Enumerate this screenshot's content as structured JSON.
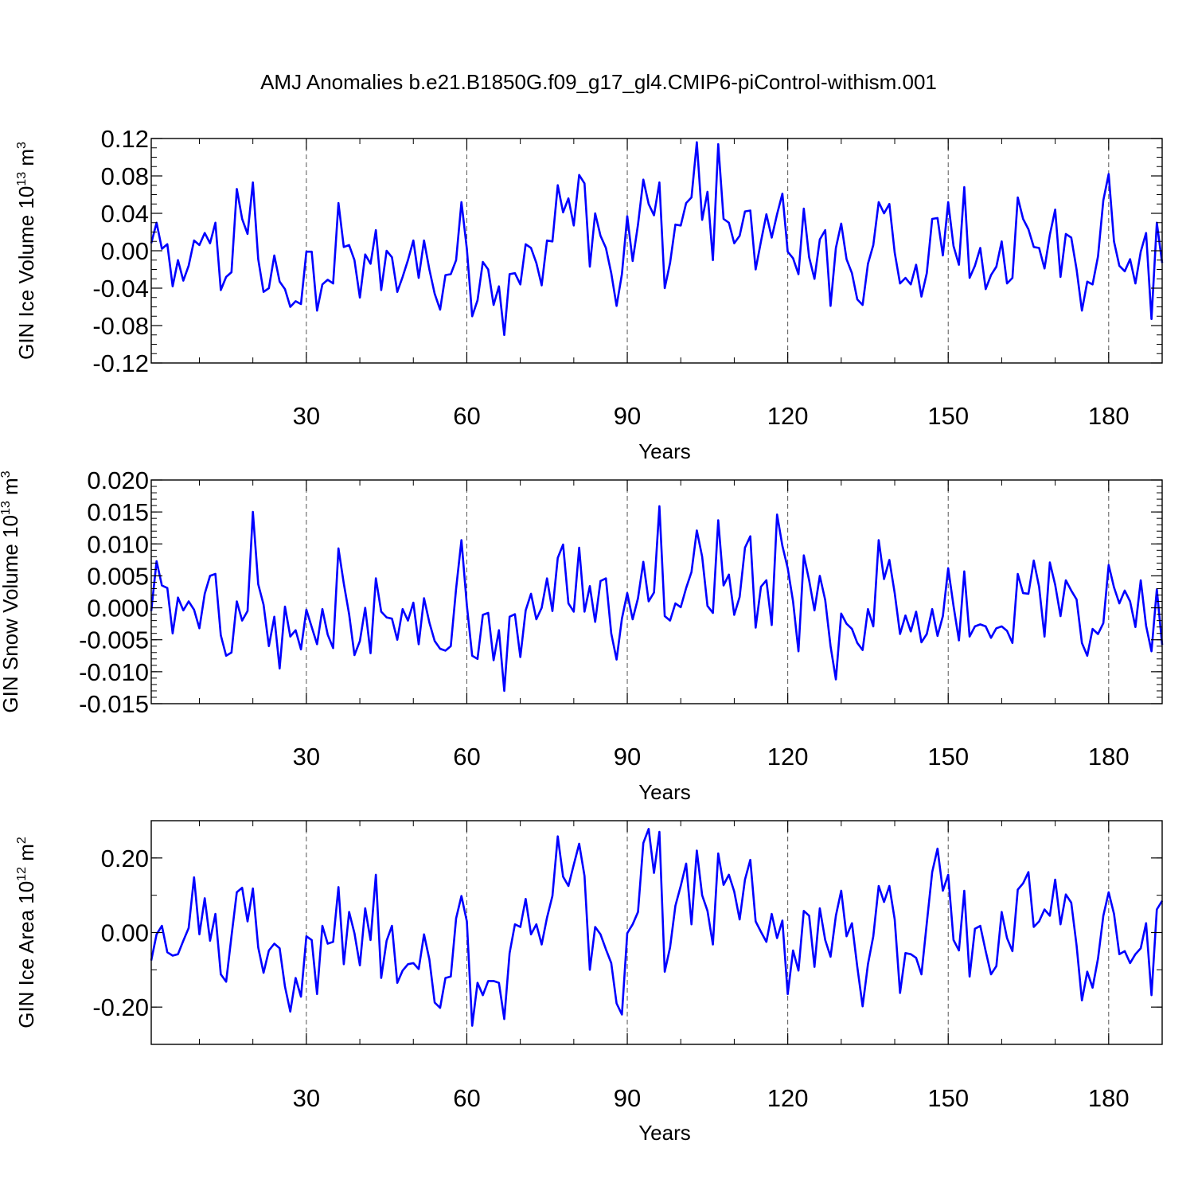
{
  "title": "AMJ Anomalies b.e21.B1850G.f09_g17_gl4.CMIP6-piControl-withism.001",
  "line_color": "#0000ff",
  "chart_data": [
    {
      "type": "line",
      "ylabel_main": "GIN Ice Volume 10",
      "ylabel_exp": "13",
      "ylabel_unit": " m",
      "ylabel_unit_exp": "3",
      "xlabel": "Years",
      "xlim": [
        1,
        190
      ],
      "ylim": [
        -0.12,
        0.12
      ],
      "x_ticks": [
        30,
        60,
        90,
        120,
        150,
        180
      ],
      "x_tick_labels": [
        "30",
        "60",
        "90",
        "120",
        "150",
        "180"
      ],
      "y_ticks": [
        -0.12,
        -0.08,
        -0.04,
        0.0,
        0.04,
        0.08,
        0.12
      ],
      "y_tick_labels": [
        "-0.12",
        "-0.08",
        "-0.04",
        "0.00",
        "0.04",
        "0.08",
        "0.12"
      ],
      "y_minor_step": 0.01,
      "grid": "vertical dashed",
      "series": [
        {
          "values": [
            0.008,
            0.03,
            0.002,
            0.007,
            -0.038,
            -0.01,
            -0.032,
            -0.016,
            0.011,
            0.006,
            0.019,
            0.008,
            0.03,
            -0.042,
            -0.028,
            -0.023,
            0.066,
            0.034,
            0.018,
            0.073,
            -0.009,
            -0.044,
            -0.04,
            -0.005,
            -0.033,
            -0.041,
            -0.06,
            -0.054,
            -0.057,
            -0.001,
            -0.001,
            -0.064,
            -0.036,
            -0.031,
            -0.035,
            0.051,
            0.004,
            0.006,
            -0.01,
            -0.05,
            -0.004,
            -0.014,
            0.022,
            -0.042,
            0.0,
            -0.007,
            -0.044,
            -0.028,
            -0.01,
            0.011,
            -0.029,
            0.011,
            -0.02,
            -0.046,
            -0.063,
            -0.026,
            -0.025,
            -0.01,
            0.052,
            0.002,
            -0.07,
            -0.053,
            -0.012,
            -0.02,
            -0.058,
            -0.038,
            -0.09,
            -0.025,
            -0.024,
            -0.036,
            0.007,
            0.003,
            -0.013,
            -0.037,
            0.011,
            0.01,
            0.07,
            0.041,
            0.056,
            0.027,
            0.081,
            0.072,
            -0.017,
            0.04,
            0.016,
            0.003,
            -0.024,
            -0.059,
            -0.025,
            0.037,
            -0.011,
            0.028,
            0.076,
            0.05,
            0.038,
            0.073,
            -0.04,
            -0.013,
            0.028,
            0.027,
            0.051,
            0.057,
            0.116,
            0.033,
            0.063,
            -0.01,
            0.114,
            0.034,
            0.03,
            0.008,
            0.016,
            0.042,
            0.043,
            -0.02,
            0.01,
            0.039,
            0.014,
            0.039,
            0.061,
            -0.001,
            -0.008,
            -0.025,
            0.045,
            -0.007,
            -0.03,
            0.012,
            0.022,
            -0.059,
            0.003,
            0.029,
            -0.009,
            -0.024,
            -0.052,
            -0.058,
            -0.014,
            0.006,
            0.052,
            0.04,
            0.05,
            -0.002,
            -0.035,
            -0.029,
            -0.036,
            -0.015,
            -0.049,
            -0.024,
            0.034,
            0.035,
            -0.005,
            0.052,
            0.005,
            -0.015,
            0.068,
            -0.029,
            -0.016,
            0.003,
            -0.041,
            -0.026,
            -0.017,
            0.01,
            -0.035,
            -0.029,
            0.057,
            0.034,
            0.023,
            0.004,
            0.003,
            -0.019,
            0.017,
            0.044,
            -0.028,
            0.018,
            0.014,
            -0.02,
            -0.064,
            -0.033,
            -0.036,
            -0.006,
            0.054,
            0.082,
            0.01,
            -0.016,
            -0.022,
            -0.009,
            -0.035,
            -0.001,
            0.019,
            -0.073,
            0.03,
            -0.013
          ]
        }
      ]
    },
    {
      "type": "line",
      "ylabel_main": "GIN Snow Volume 10",
      "ylabel_exp": "13",
      "ylabel_unit": " m",
      "ylabel_unit_exp": "3",
      "xlabel": "Years",
      "xlim": [
        1,
        190
      ],
      "ylim": [
        -0.015,
        0.02
      ],
      "x_ticks": [
        30,
        60,
        90,
        120,
        150,
        180
      ],
      "x_tick_labels": [
        "30",
        "60",
        "90",
        "120",
        "150",
        "180"
      ],
      "y_ticks": [
        -0.015,
        -0.01,
        -0.005,
        0.0,
        0.005,
        0.01,
        0.015,
        0.02
      ],
      "y_tick_labels": [
        "-0.015",
        "-0.010",
        "-0.005",
        "0.000",
        "0.005",
        "0.010",
        "0.015",
        "0.020"
      ],
      "y_minor_step": 0.001,
      "grid": "vertical dashed",
      "series": [
        {
          "values": [
            -0.0005,
            0.0073,
            0.0035,
            0.0031,
            -0.004,
            0.0016,
            -0.0004,
            0.001,
            -0.0003,
            -0.0032,
            0.0022,
            0.005,
            0.0053,
            -0.0043,
            -0.0075,
            -0.007,
            0.001,
            -0.002,
            -0.0005,
            0.015,
            0.0037,
            0.0005,
            -0.006,
            -0.0014,
            -0.0095,
            0.0002,
            -0.0045,
            -0.0035,
            -0.0065,
            -0.0003,
            -0.003,
            -0.0057,
            -0.0002,
            -0.0042,
            -0.0063,
            0.0093,
            0.0038,
            -0.001,
            -0.0074,
            -0.0052,
            0.0,
            -0.0071,
            0.0046,
            -0.0006,
            -0.0015,
            -0.0017,
            -0.005,
            -0.0002,
            -0.002,
            0.0008,
            -0.0057,
            0.0015,
            -0.0023,
            -0.0052,
            -0.0064,
            -0.0067,
            -0.006,
            0.003,
            0.0106,
            0.0004,
            -0.0075,
            -0.008,
            -0.0011,
            -0.0008,
            -0.0082,
            -0.0035,
            -0.013,
            -0.0014,
            -0.001,
            -0.0077,
            -0.0004,
            0.0022,
            -0.0018,
            0.0,
            0.0046,
            -0.0005,
            0.0078,
            0.0099,
            0.0007,
            -0.0006,
            0.0094,
            -0.0006,
            0.0034,
            -0.0022,
            0.0042,
            0.0046,
            -0.004,
            -0.0081,
            -0.0017,
            0.0023,
            -0.0018,
            0.0015,
            0.0072,
            0.001,
            0.0024,
            0.0159,
            -0.0013,
            -0.002,
            0.0007,
            0.0001,
            0.0031,
            0.0056,
            0.0121,
            0.008,
            0.0003,
            -0.0008,
            0.0137,
            0.0035,
            0.0052,
            -0.0011,
            0.0017,
            0.0094,
            0.0112,
            -0.0031,
            0.0033,
            0.0043,
            -0.0027,
            0.0146,
            0.0097,
            0.0062,
            0.001,
            -0.0068,
            0.0082,
            0.0043,
            -0.0004,
            0.005,
            0.0012,
            -0.006,
            -0.0112,
            -0.0009,
            -0.0025,
            -0.0033,
            -0.0055,
            -0.0066,
            -0.0002,
            -0.0029,
            0.0106,
            0.0045,
            0.0075,
            0.0023,
            -0.0041,
            -0.0012,
            -0.0037,
            -0.0006,
            -0.0054,
            -0.0041,
            -0.0002,
            -0.0044,
            -0.0013,
            0.0062,
            0.0003,
            -0.0051,
            0.0057,
            -0.0045,
            -0.0029,
            -0.0026,
            -0.0029,
            -0.0047,
            -0.0032,
            -0.0029,
            -0.0036,
            -0.0055,
            0.0053,
            0.0023,
            0.0022,
            0.0074,
            0.0033,
            -0.0045,
            0.0071,
            0.0036,
            -0.0013,
            0.0043,
            0.0027,
            0.0013,
            -0.0055,
            -0.0075,
            -0.0033,
            -0.0041,
            -0.0024,
            0.0067,
            0.0032,
            0.0007,
            0.0027,
            0.001,
            -0.003,
            0.0043,
            -0.0028,
            -0.0068,
            0.0029,
            -0.0058
          ]
        }
      ]
    },
    {
      "type": "line",
      "ylabel_main": "GIN Ice Area 10",
      "ylabel_exp": "12",
      "ylabel_unit": " m",
      "ylabel_unit_exp": "2",
      "xlabel": "Years",
      "xlim": [
        1,
        190
      ],
      "ylim": [
        -0.3,
        0.3
      ],
      "x_ticks": [
        30,
        60,
        90,
        120,
        150,
        180
      ],
      "x_tick_labels": [
        "30",
        "60",
        "90",
        "120",
        "150",
        "180"
      ],
      "y_ticks": [
        -0.2,
        0.0,
        0.2
      ],
      "y_tick_labels": [
        "-0.20",
        "0.00",
        "0.20"
      ],
      "y_minor_step": 0.1,
      "grid": "vertical dashed",
      "series": [
        {
          "values": [
            -0.075,
            -0.005,
            0.018,
            -0.053,
            -0.062,
            -0.058,
            -0.022,
            0.012,
            0.148,
            -0.005,
            0.092,
            -0.022,
            0.05,
            -0.112,
            -0.132,
            -0.01,
            0.108,
            0.12,
            0.03,
            0.118,
            -0.04,
            -0.108,
            -0.048,
            -0.03,
            -0.042,
            -0.145,
            -0.212,
            -0.122,
            -0.172,
            -0.01,
            -0.02,
            -0.165,
            0.018,
            -0.03,
            -0.025,
            0.122,
            -0.085,
            0.055,
            -0.002,
            -0.088,
            0.065,
            -0.02,
            0.155,
            -0.122,
            -0.022,
            0.018,
            -0.135,
            -0.102,
            -0.085,
            -0.082,
            -0.098,
            -0.005,
            -0.072,
            -0.188,
            -0.202,
            -0.122,
            -0.118,
            0.038,
            0.098,
            0.03,
            -0.25,
            -0.135,
            -0.168,
            -0.13,
            -0.13,
            -0.135,
            -0.232,
            -0.055,
            0.022,
            0.015,
            0.09,
            -0.005,
            0.022,
            -0.032,
            0.04,
            0.098,
            0.258,
            0.15,
            0.125,
            0.182,
            0.238,
            0.152,
            -0.1,
            0.015,
            -0.005,
            -0.045,
            -0.082,
            -0.19,
            -0.22,
            -0.002,
            0.022,
            0.055,
            0.24,
            0.278,
            0.16,
            0.27,
            -0.105,
            -0.04,
            0.072,
            0.125,
            0.185,
            0.022,
            0.22,
            0.1,
            0.058,
            -0.032,
            0.212,
            0.128,
            0.155,
            0.11,
            0.035,
            0.142,
            0.195,
            0.03,
            0.002,
            -0.025,
            0.05,
            -0.015,
            0.032,
            -0.165,
            -0.048,
            -0.102,
            0.058,
            0.045,
            -0.092,
            0.065,
            -0.02,
            -0.065,
            0.045,
            0.112,
            -0.01,
            0.025,
            -0.092,
            -0.198,
            -0.085,
            -0.01,
            0.125,
            0.082,
            0.125,
            0.035,
            -0.162,
            -0.055,
            -0.058,
            -0.068,
            -0.112,
            0.025,
            0.162,
            0.225,
            0.112,
            0.155,
            -0.02,
            -0.048,
            0.112,
            -0.118,
            0.01,
            0.018,
            -0.05,
            -0.112,
            -0.09,
            0.055,
            -0.015,
            -0.05,
            0.115,
            0.132,
            0.162,
            0.015,
            0.03,
            0.062,
            0.045,
            0.142,
            0.022,
            0.102,
            0.08,
            -0.035,
            -0.182,
            -0.105,
            -0.148,
            -0.07,
            0.045,
            0.108,
            0.05,
            -0.058,
            -0.05,
            -0.082,
            -0.058,
            -0.042,
            0.025,
            -0.168,
            0.062,
            0.085
          ]
        }
      ]
    }
  ]
}
